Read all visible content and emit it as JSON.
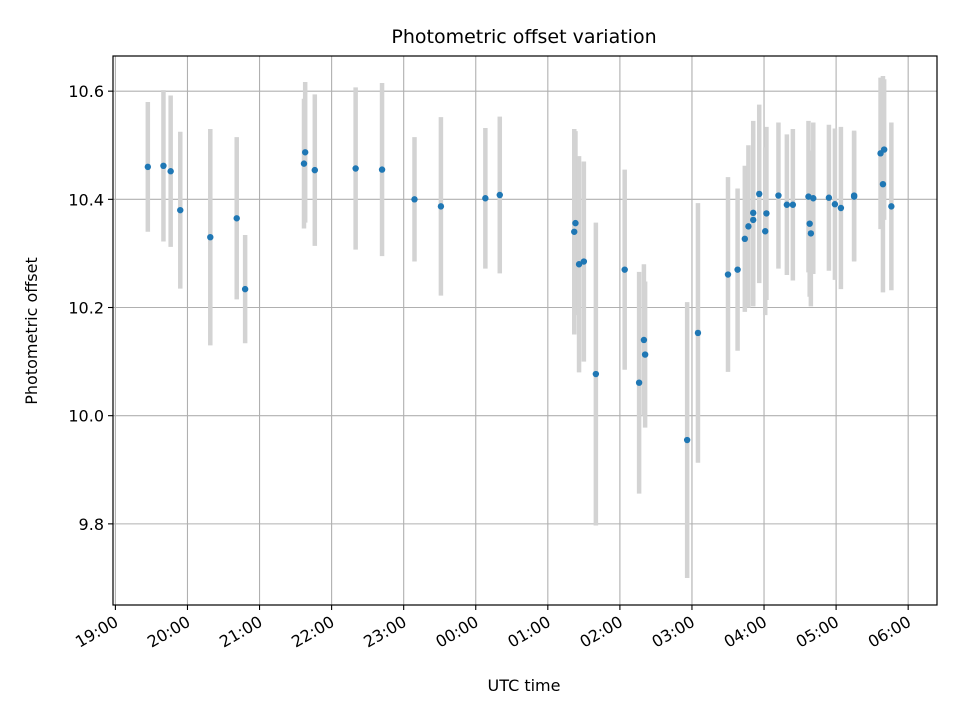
{
  "chart_data": {
    "type": "scatter",
    "title": "Photometric offset variation",
    "xlabel": "UTC time",
    "ylabel": "Photometric offset",
    "xlim": [
      "18:58",
      "06:24"
    ],
    "ylim": [
      9.65,
      10.665
    ],
    "grid": true,
    "x_ticks": [
      "19:00",
      "20:00",
      "21:00",
      "22:00",
      "23:00",
      "00:00",
      "01:00",
      "02:00",
      "03:00",
      "04:00",
      "05:00",
      "06:00"
    ],
    "y_ticks": [
      9.8,
      10.0,
      10.2,
      10.4,
      10.6
    ],
    "y_tick_labels": [
      "9.8",
      "10.0",
      "10.2",
      "10.4",
      "10.6"
    ],
    "colors": {
      "point": "#1f77b4",
      "errorbar": "#d3d3d3",
      "grid": "#b0b0b0"
    },
    "series": [
      {
        "x": [
          "19:27",
          "19:40",
          "19:46",
          "19:54",
          "20:19",
          "20:41",
          "20:48",
          "21:37",
          "21:38",
          "21:46",
          "22:20",
          "22:42",
          "23:09",
          "23:31",
          "00:08",
          "00:20",
          "01:22",
          "01:23",
          "01:26",
          "01:30",
          "01:40",
          "02:04",
          "02:16",
          "02:20",
          "02:21",
          "02:56",
          "03:05",
          "03:30",
          "03:38",
          "03:44",
          "03:47",
          "03:51",
          "03:51",
          "03:56",
          "04:01",
          "04:02",
          "04:12",
          "04:19",
          "04:24",
          "04:37",
          "04:38",
          "04:39",
          "04:41",
          "04:54",
          "04:59",
          "05:04",
          "05:15",
          "05:15",
          "05:37",
          "05:39",
          "05:40",
          "05:46"
        ],
        "y": [
          10.46,
          10.462,
          10.452,
          10.38,
          10.33,
          10.365,
          10.234,
          10.466,
          10.487,
          10.454,
          10.457,
          10.455,
          10.4,
          10.387,
          10.402,
          10.408,
          10.34,
          10.356,
          10.28,
          10.285,
          10.077,
          10.27,
          10.061,
          10.14,
          10.113,
          9.955,
          10.153,
          10.261,
          10.27,
          10.327,
          10.35,
          10.362,
          10.375,
          10.41,
          10.341,
          10.374,
          10.407,
          10.39,
          10.39,
          10.405,
          10.355,
          10.337,
          10.402,
          10.403,
          10.391,
          10.384,
          10.405,
          10.407,
          10.485,
          10.428,
          10.492,
          10.387
        ],
        "yerr": [
          0.12,
          0.14,
          0.14,
          0.145,
          0.2,
          0.15,
          0.1,
          0.12,
          0.13,
          0.14,
          0.15,
          0.16,
          0.115,
          0.165,
          0.13,
          0.145,
          0.19,
          0.17,
          0.2,
          0.185,
          0.28,
          0.185,
          0.205,
          0.14,
          0.135,
          0.255,
          0.24,
          0.18,
          0.15,
          0.135,
          0.15,
          0.16,
          0.17,
          0.165,
          0.155,
          0.16,
          0.135,
          0.13,
          0.14,
          0.14,
          0.135,
          0.135,
          0.14,
          0.135,
          0.14,
          0.15,
          0.12,
          0.12,
          0.14,
          0.2,
          0.13,
          0.155
        ]
      }
    ]
  }
}
